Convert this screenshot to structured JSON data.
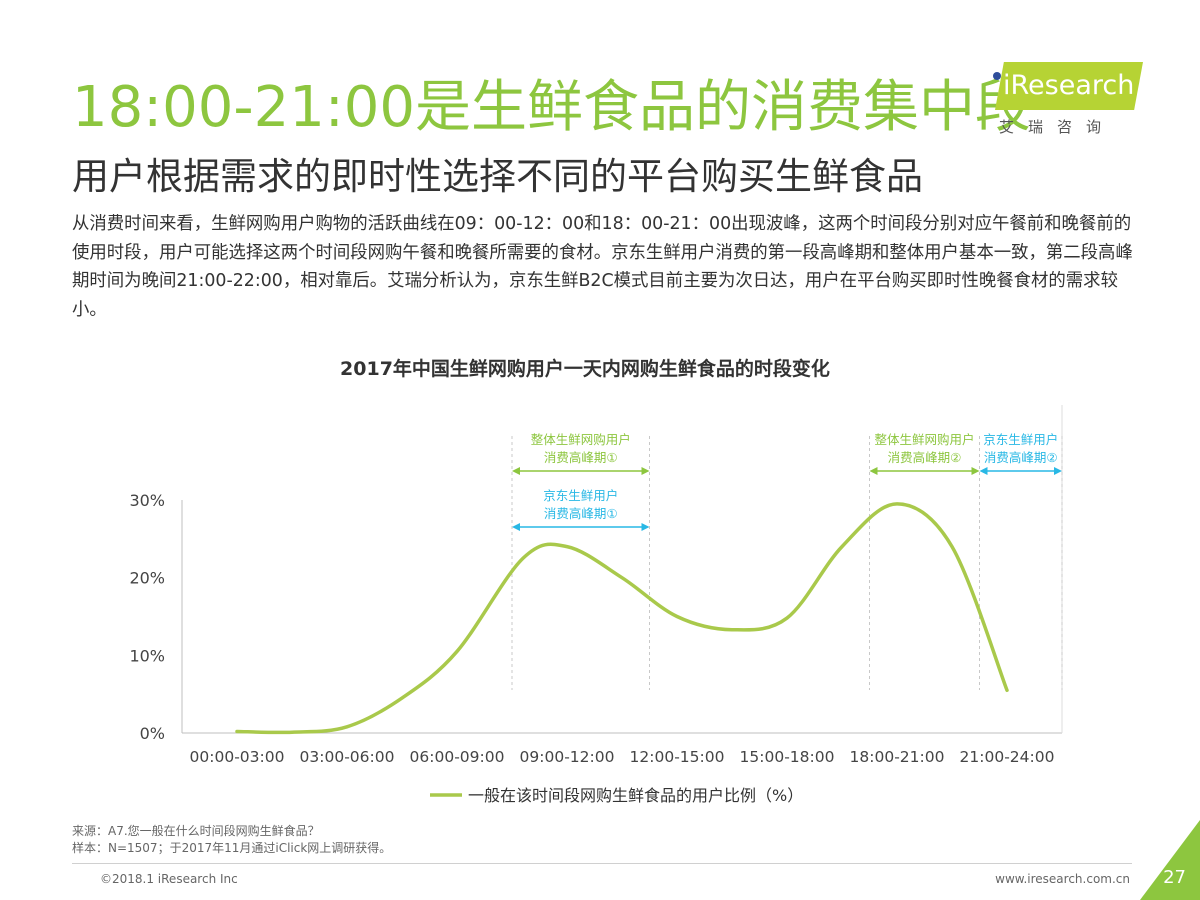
{
  "header": {
    "title": "18:00-21:00是生鲜食品的消费集中段",
    "subtitle": "用户根据需求的即时性选择不同的平台购买生鲜食品",
    "logo_text": "iResearch",
    "logo_cn": "艾瑞咨询"
  },
  "body_text": "从消费时间来看，生鲜网购用户购物的活跃曲线在09：00-12：00和18：00-21：00出现波峰，这两个时间段分别对应午餐前和晚餐前的使用时段，用户可能选择这两个时间段网购午餐和晚餐所需要的食材。京东生鲜用户消费的第一段高峰期和整体用户基本一致，第二段高峰期时间为晚间21:00-22:00，相对靠后。艾瑞分析认为，京东生鲜B2C模式目前主要为次日达，用户在平台购买即时性晚餐食材的需求较小。",
  "chart_data": {
    "type": "line",
    "title": "2017年中国生鲜网购用户一天内网购生鲜食品的时段变化",
    "categories": [
      "00:00-03:00",
      "03:00-06:00",
      "06:00-09:00",
      "09:00-12:00",
      "12:00-15:00",
      "15:00-18:00",
      "18:00-21:00",
      "21:00-24:00"
    ],
    "yticks": [
      "0%",
      "10%",
      "20%",
      "30%"
    ],
    "ylim": [
      0,
      30
    ],
    "series": [
      {
        "name": "一般在该时间段网购生鲜食品的用户比例（%）",
        "color": "#a9c94b",
        "points": [
          [
            0.0,
            0.2
          ],
          [
            0.5,
            0.1
          ],
          [
            1.0,
            0.8
          ],
          [
            1.5,
            4.5
          ],
          [
            2.0,
            10.5
          ],
          [
            2.6,
            22.5
          ],
          [
            3.0,
            24.0
          ],
          [
            3.5,
            20.0
          ],
          [
            4.0,
            15.0
          ],
          [
            4.5,
            13.3
          ],
          [
            5.0,
            14.8
          ],
          [
            5.5,
            24.0
          ],
          [
            6.0,
            29.5
          ],
          [
            6.5,
            24.0
          ],
          [
            7.0,
            5.5
          ]
        ]
      }
    ],
    "annotations": [
      {
        "lines": [
          "整体生鲜网购用户",
          "消费高峰期①"
        ],
        "range": [
          2.5,
          3.75
        ],
        "color": "#8dc63f"
      },
      {
        "lines": [
          "京东生鲜用户",
          "消费高峰期①"
        ],
        "range": [
          2.5,
          3.75
        ],
        "color": "#29b8e5"
      },
      {
        "lines": [
          "整体生鲜网购用户",
          "消费高峰期②"
        ],
        "range": [
          5.75,
          6.75
        ],
        "color": "#8dc63f"
      },
      {
        "lines": [
          "京东生鲜用户",
          "消费高峰期②"
        ],
        "range": [
          6.75,
          7.5
        ],
        "color": "#29b8e5"
      }
    ]
  },
  "source": {
    "line1": "来源：A7.您一般在什么时间段网购生鲜食品？",
    "line2": "样本：N=1507；于2017年11月通过iClick网上调研获得。"
  },
  "footer": {
    "copyright": "©2018.1 iResearch Inc",
    "website": "www.iresearch.com.cn",
    "page": "27"
  }
}
